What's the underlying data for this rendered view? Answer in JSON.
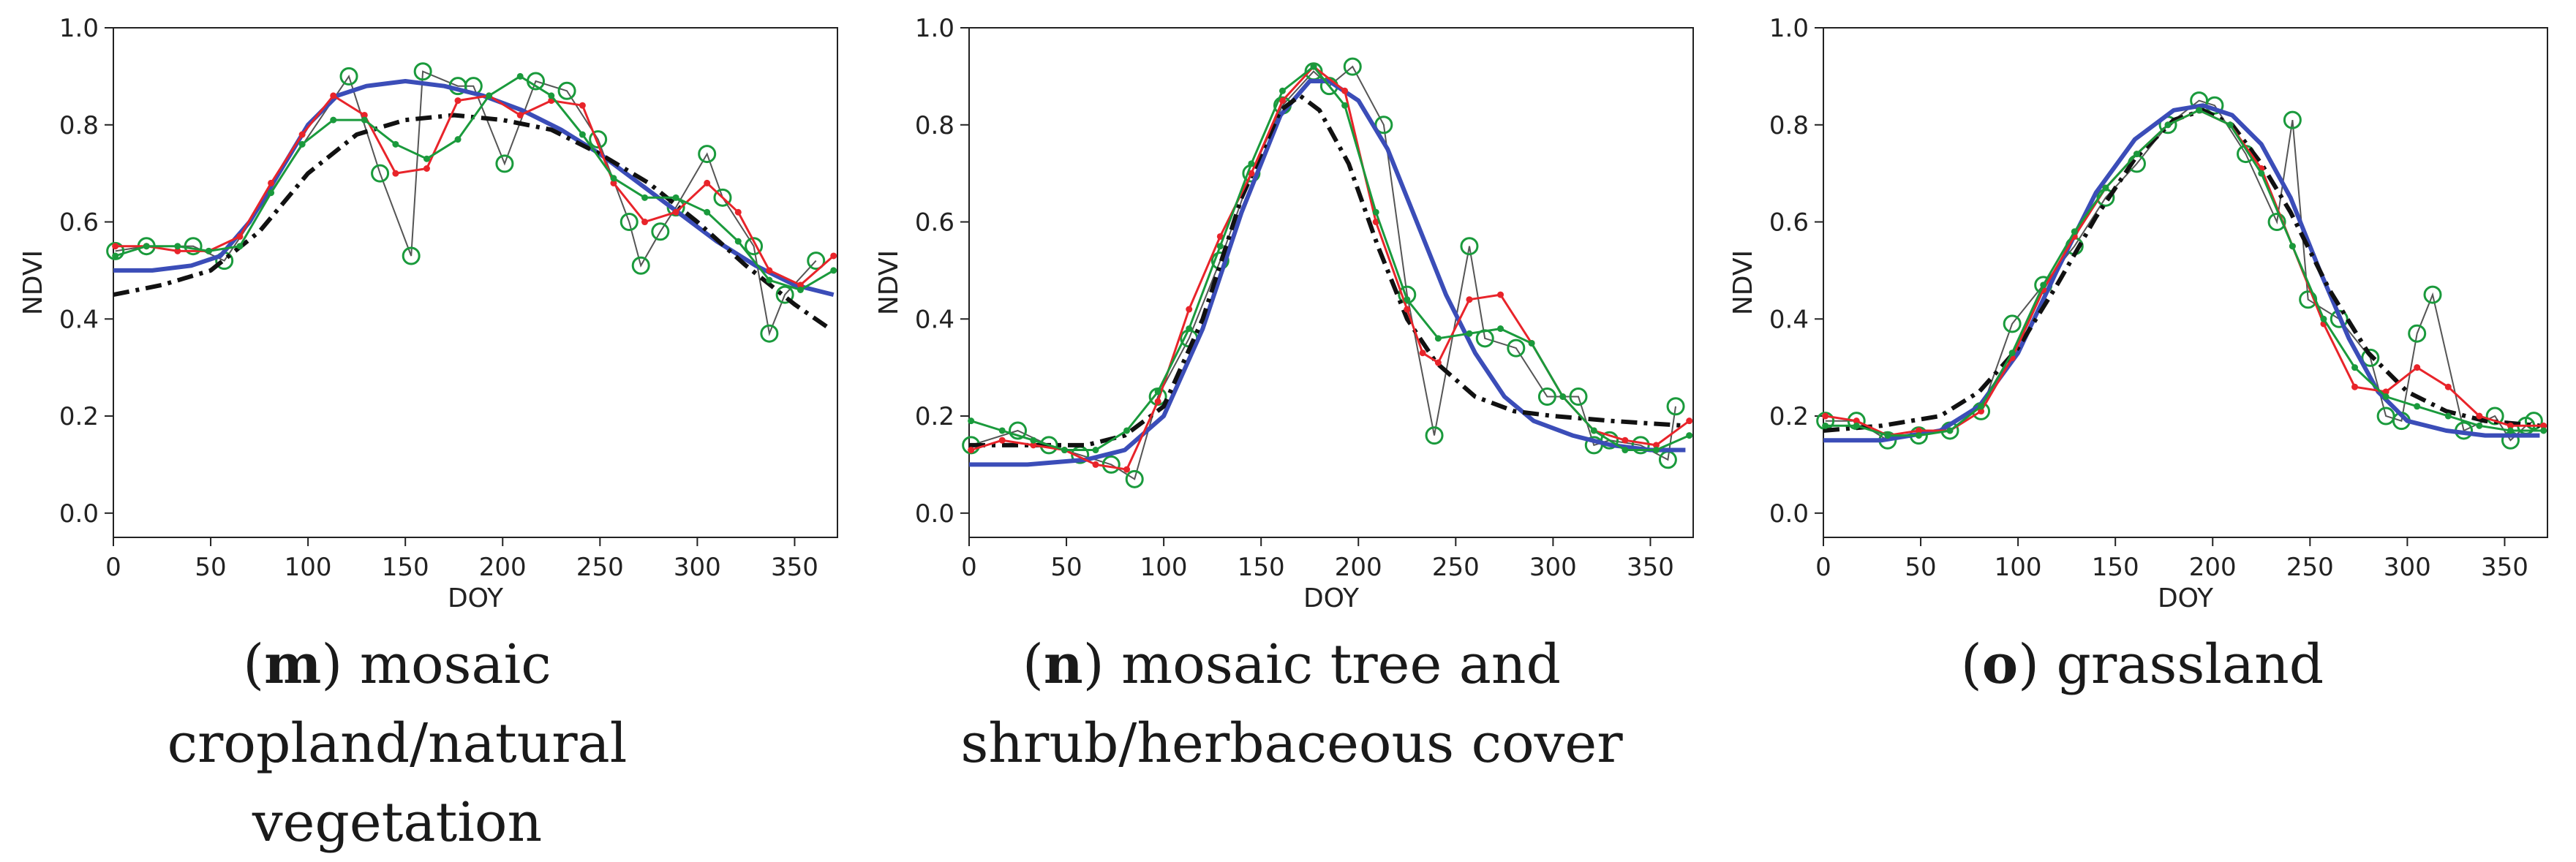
{
  "chart_data": [
    {
      "type": "line",
      "xlabel": "DOY",
      "ylabel": "NDVI",
      "xlim": [
        0,
        372
      ],
      "ylim": [
        -0.05,
        1.0
      ],
      "xticks": [
        "0",
        "50",
        "100",
        "150",
        "200",
        "250",
        "300",
        "350"
      ],
      "yticks": [
        "0.0",
        "0.2",
        "0.4",
        "0.6",
        "0.8",
        "1.0"
      ],
      "caption": {
        "letter": "m",
        "line1": "mosaic cropland/natural",
        "line2": "vegetation"
      },
      "series": [
        {
          "style": "raw",
          "color": "#555555",
          "x": [
            1,
            17,
            41,
            57,
            121,
            137,
            153,
            159,
            177,
            185,
            201,
            217,
            233,
            249,
            265,
            271,
            281,
            289,
            305,
            313,
            329,
            337,
            345,
            361
          ],
          "y": [
            0.54,
            0.55,
            0.55,
            0.52,
            0.9,
            0.7,
            0.53,
            0.91,
            0.88,
            0.88,
            0.72,
            0.89,
            0.87,
            0.77,
            0.6,
            0.51,
            0.58,
            0.63,
            0.74,
            0.65,
            0.55,
            0.37,
            0.45,
            0.52
          ]
        },
        {
          "style": "red",
          "color": "#e8242a",
          "x": [
            1,
            17,
            33,
            49,
            65,
            81,
            97,
            113,
            129,
            145,
            161,
            177,
            193,
            209,
            225,
            241,
            257,
            273,
            289,
            305,
            321,
            337,
            353,
            370
          ],
          "y": [
            0.55,
            0.55,
            0.54,
            0.54,
            0.57,
            0.68,
            0.78,
            0.86,
            0.82,
            0.7,
            0.71,
            0.85,
            0.86,
            0.82,
            0.85,
            0.84,
            0.68,
            0.6,
            0.62,
            0.68,
            0.62,
            0.5,
            0.47,
            0.53
          ]
        },
        {
          "style": "green",
          "color": "#1a9a3c",
          "x": [
            1,
            17,
            33,
            49,
            65,
            81,
            97,
            113,
            129,
            145,
            161,
            177,
            193,
            209,
            225,
            241,
            257,
            273,
            289,
            305,
            321,
            337,
            353,
            370
          ],
          "y": [
            0.53,
            0.55,
            0.55,
            0.54,
            0.55,
            0.66,
            0.76,
            0.81,
            0.81,
            0.76,
            0.73,
            0.77,
            0.86,
            0.9,
            0.86,
            0.78,
            0.69,
            0.65,
            0.65,
            0.62,
            0.56,
            0.48,
            0.46,
            0.5
          ]
        },
        {
          "style": "blue",
          "color": "#3b4db8",
          "x": [
            0,
            20,
            40,
            55,
            70,
            85,
            100,
            115,
            130,
            150,
            170,
            190,
            210,
            230,
            250,
            270,
            290,
            310,
            330,
            350,
            370
          ],
          "y": [
            0.5,
            0.5,
            0.51,
            0.53,
            0.6,
            0.7,
            0.8,
            0.86,
            0.88,
            0.89,
            0.88,
            0.86,
            0.83,
            0.79,
            0.74,
            0.68,
            0.62,
            0.56,
            0.51,
            0.47,
            0.45
          ]
        },
        {
          "style": "dashdot",
          "color": "#111111",
          "x": [
            0,
            25,
            50,
            75,
            100,
            125,
            150,
            175,
            200,
            225,
            250,
            275,
            300,
            325,
            350,
            368
          ],
          "y": [
            0.45,
            0.47,
            0.5,
            0.58,
            0.7,
            0.78,
            0.81,
            0.82,
            0.81,
            0.79,
            0.74,
            0.68,
            0.6,
            0.51,
            0.43,
            0.38
          ]
        }
      ]
    },
    {
      "type": "line",
      "xlabel": "DOY",
      "ylabel": "NDVI",
      "xlim": [
        0,
        372
      ],
      "ylim": [
        -0.05,
        1.0
      ],
      "xticks": [
        "0",
        "50",
        "100",
        "150",
        "200",
        "250",
        "300",
        "350"
      ],
      "yticks": [
        "0.0",
        "0.2",
        "0.4",
        "0.6",
        "0.8",
        "1.0"
      ],
      "caption": {
        "letter": "n",
        "line1": "mosaic tree and",
        "line2": "shrub/herbaceous cover"
      },
      "series": [
        {
          "style": "raw",
          "color": "#555555",
          "x": [
            1,
            25,
            41,
            57,
            73,
            85,
            97,
            113,
            129,
            145,
            161,
            177,
            185,
            197,
            213,
            225,
            239,
            257,
            265,
            281,
            297,
            313,
            321,
            329,
            345,
            359,
            363
          ],
          "y": [
            0.14,
            0.17,
            0.14,
            0.12,
            0.1,
            0.07,
            0.24,
            0.36,
            0.52,
            0.7,
            0.84,
            0.91,
            0.88,
            0.92,
            0.8,
            0.45,
            0.16,
            0.55,
            0.36,
            0.34,
            0.24,
            0.24,
            0.14,
            0.15,
            0.14,
            0.11,
            0.22
          ]
        },
        {
          "style": "red",
          "color": "#e8242a",
          "x": [
            1,
            17,
            33,
            49,
            65,
            81,
            97,
            113,
            129,
            145,
            161,
            177,
            193,
            209,
            225,
            233,
            241,
            257,
            273,
            289,
            305,
            321,
            337,
            353,
            370
          ],
          "y": [
            0.13,
            0.15,
            0.14,
            0.13,
            0.1,
            0.09,
            0.23,
            0.42,
            0.57,
            0.7,
            0.85,
            0.92,
            0.87,
            0.6,
            0.42,
            0.33,
            0.31,
            0.44,
            0.45,
            0.35,
            0.24,
            0.17,
            0.15,
            0.14,
            0.19
          ]
        },
        {
          "style": "green",
          "color": "#1a9a3c",
          "x": [
            1,
            17,
            33,
            49,
            65,
            81,
            97,
            113,
            129,
            145,
            161,
            177,
            193,
            209,
            225,
            241,
            257,
            273,
            289,
            305,
            321,
            337,
            353,
            370
          ],
          "y": [
            0.19,
            0.17,
            0.15,
            0.13,
            0.13,
            0.17,
            0.25,
            0.38,
            0.55,
            0.72,
            0.87,
            0.92,
            0.84,
            0.62,
            0.44,
            0.36,
            0.37,
            0.38,
            0.35,
            0.24,
            0.17,
            0.13,
            0.13,
            0.16
          ]
        },
        {
          "style": "blue",
          "color": "#3b4db8",
          "x": [
            0,
            30,
            60,
            80,
            100,
            120,
            140,
            160,
            175,
            185,
            200,
            215,
            230,
            245,
            260,
            275,
            290,
            310,
            330,
            350,
            368
          ],
          "y": [
            0.1,
            0.1,
            0.11,
            0.13,
            0.2,
            0.38,
            0.62,
            0.82,
            0.89,
            0.89,
            0.85,
            0.75,
            0.6,
            0.45,
            0.33,
            0.24,
            0.19,
            0.16,
            0.14,
            0.13,
            0.13
          ]
        },
        {
          "style": "dashdot",
          "color": "#111111",
          "x": [
            0,
            30,
            60,
            80,
            100,
            120,
            140,
            160,
            170,
            180,
            195,
            210,
            225,
            240,
            260,
            280,
            300,
            330,
            368
          ],
          "y": [
            0.14,
            0.14,
            0.14,
            0.16,
            0.22,
            0.4,
            0.65,
            0.83,
            0.86,
            0.83,
            0.72,
            0.55,
            0.4,
            0.31,
            0.24,
            0.21,
            0.2,
            0.19,
            0.18
          ]
        }
      ]
    },
    {
      "type": "line",
      "xlabel": "DOY",
      "ylabel": "NDVI",
      "xlim": [
        0,
        372
      ],
      "ylim": [
        -0.05,
        1.0
      ],
      "xticks": [
        "0",
        "50",
        "100",
        "150",
        "200",
        "250",
        "300",
        "350"
      ],
      "yticks": [
        "0.0",
        "0.2",
        "0.4",
        "0.6",
        "0.8",
        "1.0"
      ],
      "caption": {
        "letter": "o",
        "line1": "grassland",
        "line2": ""
      },
      "series": [
        {
          "style": "raw",
          "color": "#555555",
          "x": [
            1,
            17,
            33,
            49,
            65,
            81,
            97,
            113,
            129,
            145,
            161,
            177,
            193,
            201,
            217,
            233,
            241,
            249,
            265,
            281,
            289,
            297,
            305,
            313,
            329,
            345,
            353,
            361,
            365
          ],
          "y": [
            0.19,
            0.19,
            0.15,
            0.16,
            0.17,
            0.21,
            0.39,
            0.47,
            0.55,
            0.65,
            0.72,
            0.8,
            0.85,
            0.84,
            0.74,
            0.6,
            0.81,
            0.44,
            0.4,
            0.32,
            0.2,
            0.19,
            0.37,
            0.45,
            0.17,
            0.2,
            0.15,
            0.18,
            0.19
          ]
        },
        {
          "style": "red",
          "color": "#e8242a",
          "x": [
            1,
            17,
            33,
            49,
            65,
            81,
            97,
            113,
            129,
            145,
            161,
            177,
            193,
            209,
            225,
            241,
            257,
            273,
            289,
            305,
            321,
            337,
            353,
            370
          ],
          "y": [
            0.2,
            0.19,
            0.16,
            0.17,
            0.17,
            0.21,
            0.32,
            0.46,
            0.57,
            0.67,
            0.74,
            0.8,
            0.83,
            0.8,
            0.71,
            0.55,
            0.39,
            0.26,
            0.25,
            0.3,
            0.26,
            0.2,
            0.18,
            0.18
          ]
        },
        {
          "style": "green",
          "color": "#1a9a3c",
          "x": [
            1,
            17,
            33,
            49,
            65,
            81,
            97,
            113,
            129,
            145,
            161,
            177,
            193,
            209,
            225,
            241,
            257,
            273,
            289,
            305,
            321,
            337,
            353,
            370
          ],
          "y": [
            0.18,
            0.18,
            0.16,
            0.16,
            0.17,
            0.22,
            0.33,
            0.47,
            0.58,
            0.67,
            0.74,
            0.8,
            0.83,
            0.8,
            0.7,
            0.55,
            0.4,
            0.3,
            0.24,
            0.22,
            0.2,
            0.18,
            0.17,
            0.17
          ]
        },
        {
          "style": "blue",
          "color": "#3b4db8",
          "x": [
            0,
            30,
            60,
            80,
            100,
            120,
            140,
            160,
            180,
            195,
            210,
            225,
            240,
            255,
            270,
            285,
            300,
            320,
            340,
            360,
            368
          ],
          "y": [
            0.15,
            0.15,
            0.17,
            0.22,
            0.33,
            0.5,
            0.66,
            0.77,
            0.83,
            0.84,
            0.82,
            0.76,
            0.65,
            0.5,
            0.36,
            0.25,
            0.19,
            0.17,
            0.16,
            0.16,
            0.16
          ]
        },
        {
          "style": "dashdot",
          "color": "#111111",
          "x": [
            0,
            30,
            60,
            80,
            100,
            120,
            140,
            160,
            180,
            195,
            210,
            225,
            240,
            260,
            280,
            300,
            320,
            340,
            368
          ],
          "y": [
            0.17,
            0.18,
            0.2,
            0.25,
            0.34,
            0.47,
            0.61,
            0.73,
            0.81,
            0.83,
            0.8,
            0.72,
            0.62,
            0.46,
            0.33,
            0.25,
            0.21,
            0.19,
            0.18
          ]
        }
      ]
    }
  ]
}
